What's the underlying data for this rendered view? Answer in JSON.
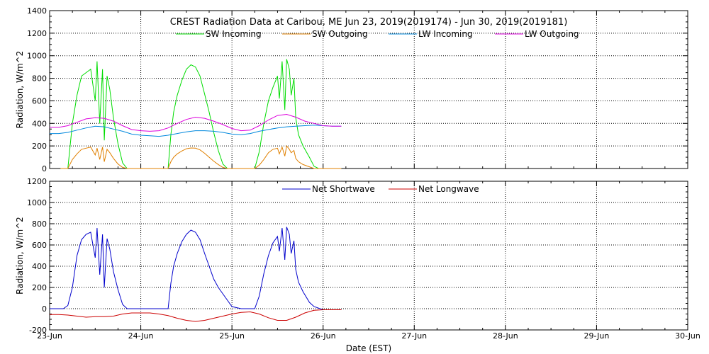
{
  "chart_data": [
    {
      "type": "line",
      "title": "CREST Radiation Data at Caribou, ME   Jun 23, 2019(2019174) - Jun 30, 2019(2019181)",
      "xlabel": "",
      "ylabel": "Radiation, W/m^2",
      "ylim": [
        0,
        1400
      ],
      "yticks": [
        0,
        200,
        400,
        600,
        800,
        1000,
        1200,
        1400
      ],
      "xlim": [
        0,
        7
      ],
      "grid": true,
      "legend": "top",
      "series": [
        {
          "name": "SW Incoming",
          "color": "#00dd00",
          "x": [
            0.12,
            0.2,
            0.25,
            0.3,
            0.35,
            0.4,
            0.45,
            0.5,
            0.52,
            0.55,
            0.58,
            0.6,
            0.63,
            0.66,
            0.7,
            0.75,
            0.8,
            0.85,
            0.9,
            0.95,
            1.0,
            1.1,
            1.2,
            1.25,
            1.3,
            1.33,
            1.36,
            1.4,
            1.45,
            1.5,
            1.55,
            1.6,
            1.65,
            1.7,
            1.75,
            1.8,
            1.85,
            1.9,
            1.95,
            2.0,
            2.05,
            2.1,
            2.2,
            2.25,
            2.3,
            2.35,
            2.4,
            2.45,
            2.5,
            2.52,
            2.55,
            2.58,
            2.6,
            2.63,
            2.65,
            2.68,
            2.7,
            2.73,
            2.78,
            2.85,
            2.9,
            2.95,
            3.0,
            3.1,
            3.2
          ],
          "y": [
            0,
            0,
            400,
            650,
            820,
            850,
            880,
            600,
            950,
            400,
            880,
            250,
            820,
            700,
            450,
            220,
            50,
            0,
            0,
            0,
            0,
            0,
            0,
            0,
            0,
            300,
            500,
            650,
            780,
            880,
            920,
            900,
            820,
            660,
            500,
            320,
            160,
            40,
            0,
            0,
            0,
            0,
            0,
            0,
            150,
            400,
            600,
            720,
            820,
            620,
            950,
            520,
            970,
            880,
            650,
            800,
            450,
            300,
            200,
            100,
            20,
            0,
            0,
            0,
            0
          ]
        },
        {
          "name": "SW Outgoing",
          "color": "#e08000",
          "x": [
            0.12,
            0.2,
            0.25,
            0.3,
            0.35,
            0.4,
            0.45,
            0.5,
            0.52,
            0.55,
            0.58,
            0.6,
            0.63,
            0.66,
            0.7,
            0.75,
            0.8,
            0.85,
            0.9,
            1.0,
            1.2,
            1.25,
            1.3,
            1.33,
            1.36,
            1.4,
            1.45,
            1.5,
            1.55,
            1.6,
            1.65,
            1.7,
            1.75,
            1.8,
            1.85,
            1.9,
            1.95,
            2.0,
            2.1,
            2.2,
            2.25,
            2.3,
            2.35,
            2.4,
            2.45,
            2.5,
            2.52,
            2.55,
            2.58,
            2.6,
            2.63,
            2.65,
            2.68,
            2.7,
            2.73,
            2.78,
            2.85,
            2.9,
            3.0,
            3.2
          ],
          "y": [
            0,
            0,
            80,
            130,
            170,
            180,
            190,
            120,
            180,
            80,
            190,
            60,
            170,
            140,
            90,
            40,
            10,
            0,
            0,
            0,
            0,
            0,
            0,
            60,
            100,
            130,
            155,
            175,
            182,
            180,
            165,
            135,
            100,
            65,
            35,
            10,
            0,
            0,
            0,
            0,
            0,
            30,
            80,
            140,
            170,
            180,
            130,
            190,
            110,
            200,
            170,
            140,
            160,
            90,
            60,
            35,
            15,
            0,
            0,
            0
          ]
        },
        {
          "name": "LW Incoming",
          "color": "#0088dd",
          "x": [
            0,
            0.1,
            0.2,
            0.3,
            0.4,
            0.5,
            0.6,
            0.7,
            0.8,
            0.9,
            1.0,
            1.1,
            1.2,
            1.3,
            1.4,
            1.5,
            1.6,
            1.7,
            1.8,
            1.9,
            2.0,
            2.1,
            2.2,
            2.3,
            2.4,
            2.5,
            2.6,
            2.7,
            2.8,
            2.9,
            3.0,
            3.1,
            3.2
          ],
          "y": [
            310,
            310,
            320,
            340,
            360,
            375,
            370,
            350,
            330,
            305,
            295,
            290,
            285,
            295,
            310,
            325,
            335,
            335,
            330,
            320,
            305,
            300,
            310,
            330,
            345,
            360,
            370,
            375,
            380,
            385,
            380,
            375,
            375
          ]
        },
        {
          "name": "LW Outgoing",
          "color": "#dd00dd",
          "x": [
            0,
            0.1,
            0.2,
            0.3,
            0.4,
            0.5,
            0.6,
            0.7,
            0.8,
            0.9,
            1.0,
            1.1,
            1.2,
            1.3,
            1.4,
            1.5,
            1.6,
            1.7,
            1.8,
            1.9,
            2.0,
            2.1,
            2.2,
            2.3,
            2.4,
            2.5,
            2.6,
            2.7,
            2.8,
            2.9,
            3.0,
            3.1,
            3.2
          ],
          "y": [
            365,
            365,
            380,
            410,
            440,
            450,
            445,
            420,
            380,
            345,
            335,
            330,
            335,
            360,
            400,
            435,
            455,
            445,
            420,
            390,
            355,
            335,
            340,
            380,
            430,
            470,
            480,
            455,
            420,
            400,
            380,
            375,
            375
          ]
        }
      ]
    },
    {
      "type": "line",
      "title": "",
      "xlabel": "Date (EST)",
      "ylabel": "Radiation, W/m^2",
      "ylim": [
        -200,
        1200
      ],
      "yticks": [
        -200,
        0,
        200,
        400,
        600,
        800,
        1000,
        1200
      ],
      "xlim": [
        0,
        7
      ],
      "xticks": [
        "23-Jun",
        "24-Jun",
        "25-Jun",
        "26-Jun",
        "27-Jun",
        "28-Jun",
        "29-Jun",
        "30-Jun"
      ],
      "grid": true,
      "legend": "top",
      "series": [
        {
          "name": "Net Shortwave",
          "color": "#0000cc",
          "x": [
            0,
            0.15,
            0.2,
            0.25,
            0.3,
            0.35,
            0.4,
            0.45,
            0.5,
            0.52,
            0.55,
            0.58,
            0.6,
            0.63,
            0.66,
            0.7,
            0.75,
            0.8,
            0.85,
            1.0,
            1.2,
            1.25,
            1.3,
            1.33,
            1.36,
            1.4,
            1.45,
            1.5,
            1.55,
            1.6,
            1.65,
            1.7,
            1.75,
            1.8,
            1.85,
            1.9,
            1.95,
            2.0,
            2.1,
            2.2,
            2.25,
            2.3,
            2.35,
            2.4,
            2.45,
            2.5,
            2.52,
            2.55,
            2.58,
            2.6,
            2.63,
            2.65,
            2.68,
            2.7,
            2.73,
            2.78,
            2.85,
            2.9,
            3.0,
            3.2
          ],
          "y": [
            0,
            0,
            30,
            200,
            500,
            650,
            700,
            720,
            480,
            760,
            320,
            700,
            200,
            660,
            560,
            350,
            180,
            40,
            0,
            0,
            0,
            0,
            0,
            240,
            400,
            520,
            630,
            700,
            740,
            720,
            650,
            520,
            400,
            280,
            200,
            140,
            80,
            20,
            0,
            0,
            0,
            120,
            330,
            500,
            620,
            680,
            540,
            760,
            460,
            770,
            700,
            520,
            640,
            370,
            250,
            160,
            60,
            20,
            -10,
            -10
          ]
        },
        {
          "name": "Net Longwave",
          "color": "#cc0000",
          "x": [
            0,
            0.1,
            0.2,
            0.3,
            0.4,
            0.5,
            0.6,
            0.7,
            0.8,
            0.9,
            1.0,
            1.1,
            1.2,
            1.3,
            1.4,
            1.5,
            1.6,
            1.7,
            1.8,
            1.9,
            2.0,
            2.1,
            2.2,
            2.3,
            2.4,
            2.5,
            2.6,
            2.7,
            2.8,
            2.9,
            3.0,
            3.1,
            3.2
          ],
          "y": [
            -55,
            -55,
            -60,
            -70,
            -80,
            -75,
            -75,
            -70,
            -50,
            -40,
            -40,
            -40,
            -50,
            -65,
            -90,
            -110,
            -120,
            -110,
            -90,
            -70,
            -50,
            -35,
            -30,
            -50,
            -85,
            -110,
            -110,
            -80,
            -40,
            -15,
            -10,
            -10,
            -10
          ]
        }
      ]
    }
  ]
}
